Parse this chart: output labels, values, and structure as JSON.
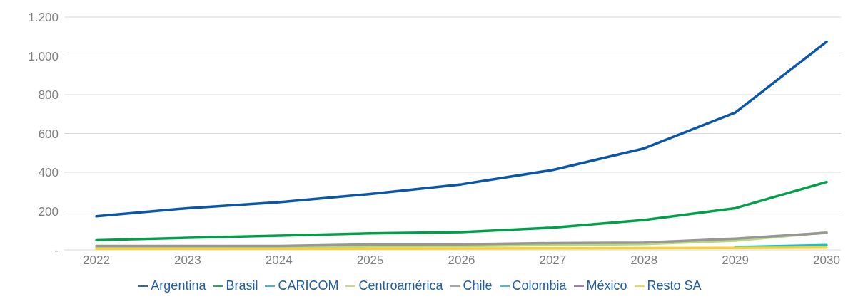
{
  "chart_data": {
    "type": "line",
    "categories": [
      "2022",
      "2023",
      "2024",
      "2025",
      "2026",
      "2027",
      "2028",
      "2029",
      "2030"
    ],
    "ylim": [
      0,
      1200
    ],
    "yticks": [
      {
        "value": 0,
        "label": "-"
      },
      {
        "value": 200,
        "label": "200"
      },
      {
        "value": 400,
        "label": "400"
      },
      {
        "value": 600,
        "label": "600"
      },
      {
        "value": 800,
        "label": "800"
      },
      {
        "value": 1000,
        "label": "1.000"
      },
      {
        "value": 1200,
        "label": "1.200"
      }
    ],
    "grid": "y",
    "legend": "bottom",
    "marker": "none",
    "line_style": "solid",
    "series": [
      {
        "name": "Argentina",
        "color": "#0a56a8",
        "values": [
          173,
          215,
          246,
          288,
          338,
          412,
          523,
          708,
          1073
        ]
      },
      {
        "name": "Brasil",
        "color": "#00a04a",
        "values": [
          50,
          62,
          73,
          85,
          92,
          115,
          154,
          215,
          350
        ]
      },
      {
        "name": "CARICOM",
        "color": "#1eaaf0",
        "values": [
          null,
          null,
          null,
          null,
          null,
          null,
          null,
          null,
          null
        ]
      },
      {
        "name": "Centroamérica",
        "color": "#b8d87a",
        "values": [
          12,
          12,
          12,
          18,
          20,
          25,
          30,
          48,
          90
        ]
      },
      {
        "name": "Chile",
        "color": "#979797",
        "values": [
          20,
          20,
          20,
          28,
          28,
          35,
          38,
          58,
          88
        ]
      },
      {
        "name": "Colombia",
        "color": "#1fbfbf",
        "values": [
          null,
          null,
          null,
          null,
          null,
          null,
          null,
          15,
          25
        ]
      },
      {
        "name": "México",
        "color": "#8e6bb8",
        "values": [
          null,
          null,
          null,
          null,
          null,
          null,
          null,
          null,
          null
        ]
      },
      {
        "name": "Resto SA",
        "color": "#f8d030",
        "values": [
          5,
          5,
          5,
          6,
          7,
          8,
          9,
          10,
          12
        ]
      }
    ]
  }
}
